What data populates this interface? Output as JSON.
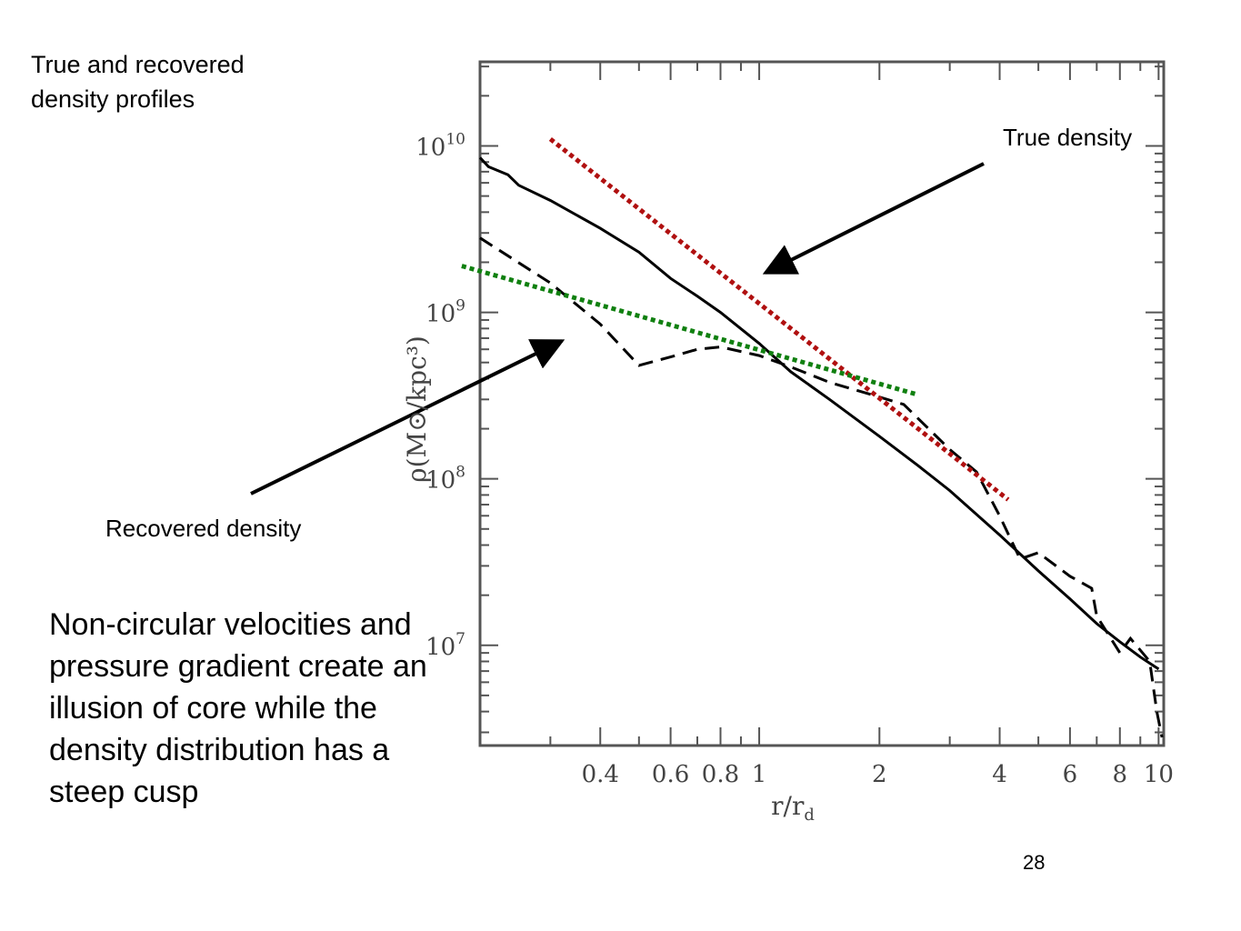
{
  "slide": {
    "title": "True and recovered density profiles",
    "annotation_true": "True density",
    "annotation_recovered": "Recovered density",
    "body": "Non-circular velocities and pressure gradient create an illusion of core while the density distribution has a steep cusp",
    "page_number": "28"
  },
  "colors": {
    "true_fit": "#b01010",
    "recovered_fit": "#108010",
    "curves": "#000000"
  },
  "chart_data": {
    "type": "line",
    "x_scale": "log",
    "y_scale": "log",
    "xlabel": "r/r_d",
    "ylabel": "ρ(M⊙/kpc³)",
    "xlim": [
      0.2,
      10.3
    ],
    "ylim": [
      2500000,
      32000000000
    ],
    "x_ticks": [
      {
        "value": 0.4,
        "label": "0.4"
      },
      {
        "value": 0.6,
        "label": "0.6"
      },
      {
        "value": 0.8,
        "label": "0.8"
      },
      {
        "value": 1,
        "label": "1"
      },
      {
        "value": 2,
        "label": "2"
      },
      {
        "value": 4,
        "label": "4"
      },
      {
        "value": 6,
        "label": "6"
      },
      {
        "value": 8,
        "label": "8"
      },
      {
        "value": 10,
        "label": "10"
      }
    ],
    "y_ticks": [
      {
        "value": 10000000,
        "base": "10",
        "exp": "7"
      },
      {
        "value": 100000000,
        "base": "10",
        "exp": "8"
      },
      {
        "value": 1000000000,
        "base": "10",
        "exp": "9"
      },
      {
        "value": 10000000000,
        "base": "10",
        "exp": "10"
      }
    ],
    "series": [
      {
        "name": "True density",
        "style": "solid",
        "x": [
          0.2,
          0.21,
          0.235,
          0.25,
          0.3,
          0.4,
          0.5,
          0.6,
          0.7,
          0.8,
          1.0,
          1.2,
          1.5,
          2.0,
          2.5,
          3.0,
          4.0,
          5.0,
          6.0,
          7.0,
          8.0,
          9.0,
          10.0
        ],
        "y": [
          8500000000,
          7500000000,
          6700000000,
          5800000000,
          4700000000,
          3200000000,
          2300000000,
          1600000000,
          1250000000,
          1000000000,
          650000000,
          440000000,
          300000000,
          180000000,
          120000000,
          85000000,
          46000000,
          28000000,
          19000000,
          13500000,
          10500000,
          8500000,
          7200000
        ]
      },
      {
        "name": "Recovered density",
        "style": "dashed",
        "x": [
          0.2,
          0.3,
          0.4,
          0.5,
          0.6,
          0.7,
          0.8,
          1.0,
          1.2,
          1.5,
          2.0,
          2.3,
          2.6,
          3.0,
          3.5,
          4.0,
          4.5,
          5.0,
          6.0,
          6.8,
          7.0,
          8.0,
          8.5,
          9.5,
          9.9,
          10.2
        ],
        "y": [
          2800000000,
          1500000000,
          850000000,
          480000000,
          540000000,
          600000000,
          620000000,
          550000000,
          470000000,
          380000000,
          310000000,
          280000000,
          210000000,
          150000000,
          110000000,
          60000000,
          33000000,
          36000000,
          26000000,
          22000000,
          15000000,
          9000000,
          11000000,
          8000000,
          4000000,
          2800000
        ]
      }
    ],
    "fits": [
      {
        "name": "True density slope",
        "style": "dotted",
        "x": [
          0.3,
          4.2
        ],
        "y": [
          11000000000,
          75000000
        ]
      },
      {
        "name": "Recovered density slope",
        "style": "dotted",
        "x": [
          0.18,
          2.5
        ],
        "y": [
          1900000000,
          320000000
        ]
      }
    ]
  }
}
